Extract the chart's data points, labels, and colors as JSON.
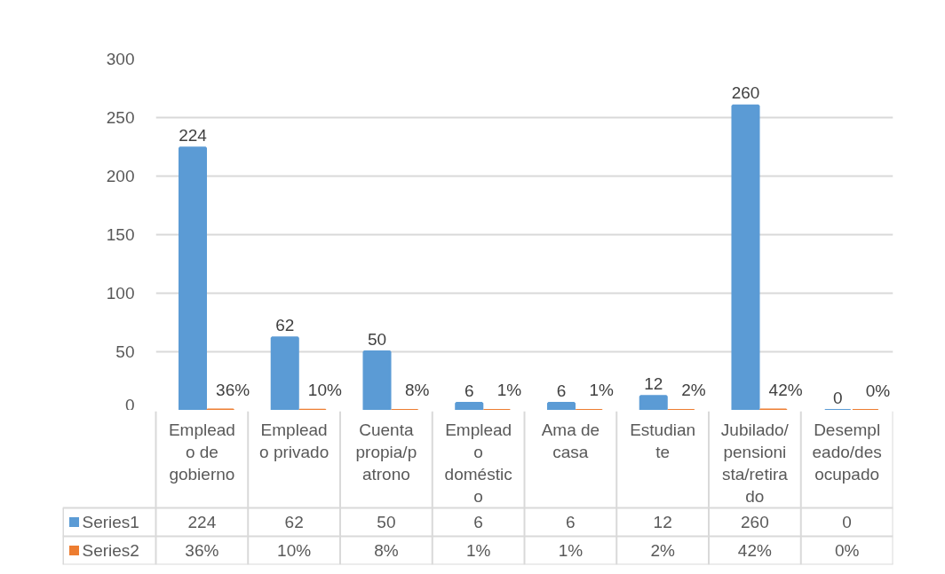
{
  "chart_data": {
    "type": "bar",
    "categories": [
      "Emplead\no de\ngobierno",
      "Emplead\no privado",
      "Cuenta\npropia/p\natrono",
      "Emplead\no\ndoméstic\no",
      "Ama de\ncasa",
      "Estudian\nte",
      "Jubilado/\npensioni\nsta/retira\ndo",
      "Desempl\neado/des\nocupado"
    ],
    "series": [
      {
        "name": "Series1",
        "color": "#5b9bd5",
        "values": [
          224,
          62,
          50,
          6,
          6,
          12,
          260,
          0
        ],
        "value_labels": [
          "224",
          "62",
          "50",
          "6",
          "6",
          "12",
          "260",
          "0"
        ]
      },
      {
        "name": "Series2",
        "color": "#ed7d31",
        "values": [
          0.36,
          0.1,
          0.08,
          0.01,
          0.01,
          0.02,
          0.42,
          0
        ],
        "value_labels": [
          "36%",
          "10%",
          "8%",
          "1%",
          "1%",
          "2%",
          "42%",
          "0%"
        ]
      }
    ],
    "ylim": [
      0,
      300
    ],
    "yticks": [
      0,
      50,
      100,
      150,
      200,
      250,
      300
    ],
    "grid": "y",
    "legend": "bottom"
  }
}
